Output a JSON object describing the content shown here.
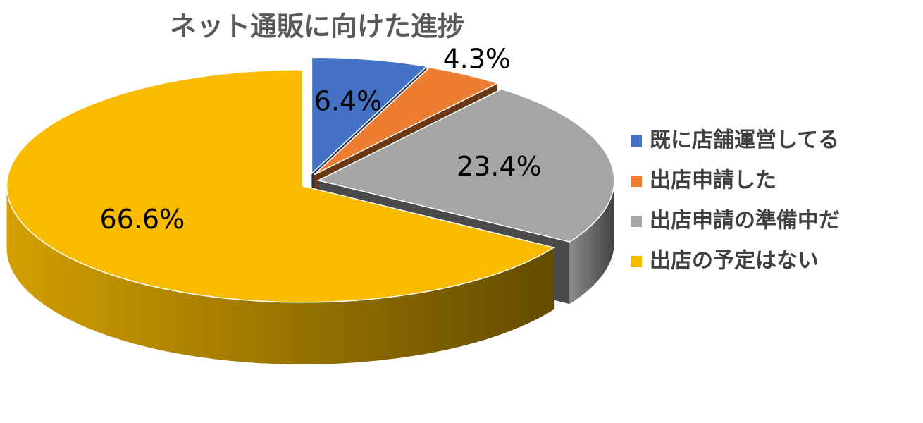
{
  "chart_data": {
    "type": "pie",
    "title": "ネット通販に向けた進捗",
    "categories": [
      "既に店舗運営してる",
      "出店申請した",
      "出店申請の準備中だ",
      "出店の予定はない"
    ],
    "values": [
      6.4,
      4.3,
      23.4,
      66.6
    ],
    "value_labels": [
      "6.4%",
      "4.3%",
      "23.4%",
      "66.6%"
    ],
    "colors": [
      "#4472c4",
      "#ed7d31",
      "#a5a5a5",
      "#f8bb00"
    ],
    "legend": "right"
  }
}
